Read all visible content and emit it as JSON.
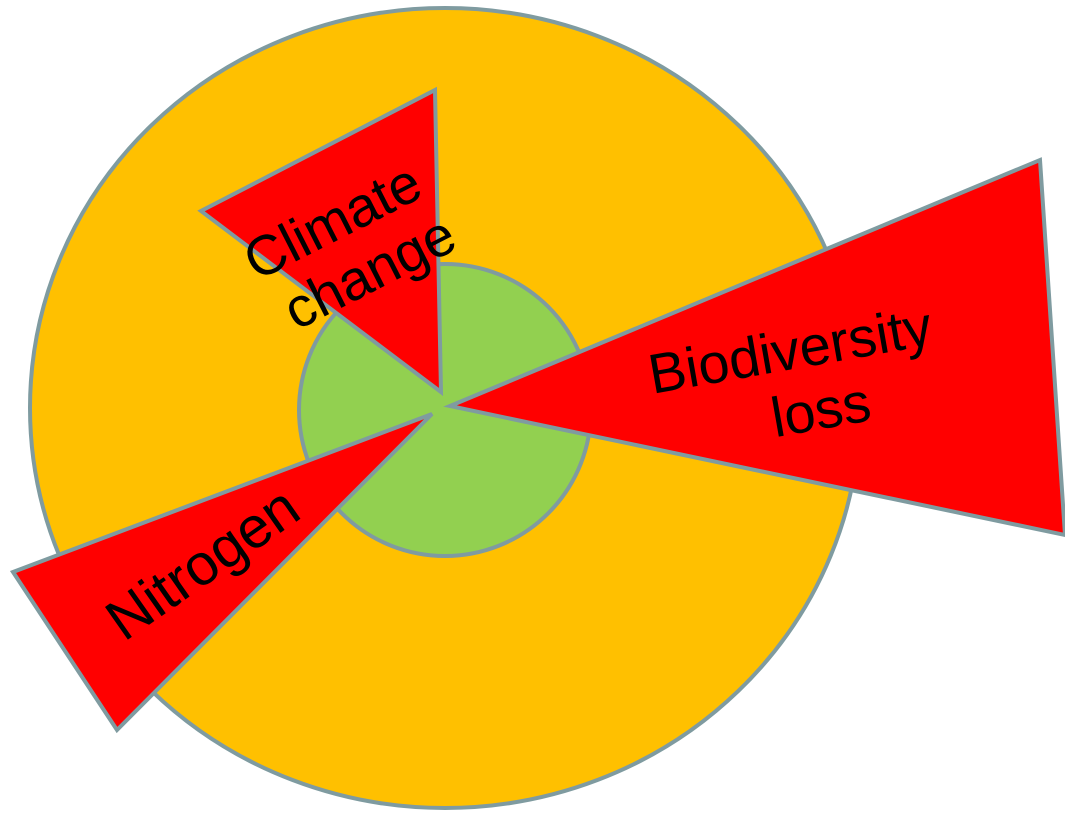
{
  "sectors": [
    {
      "label_lines": [
        "Climate",
        "change"
      ]
    },
    {
      "label_lines": [
        "Biodiversity",
        "loss"
      ]
    },
    {
      "label_lines": [
        "Nitrogen"
      ]
    }
  ]
}
